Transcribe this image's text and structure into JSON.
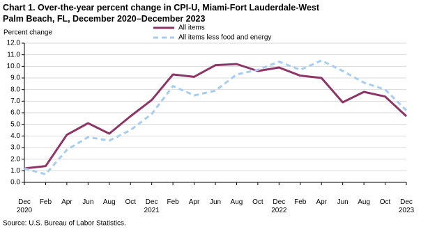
{
  "chart_data": {
    "type": "line",
    "title": "Chart 1. Over-the-year percent change in CPI-U, Miami-Fort Lauderdale-West Palm Beach, FL, December 2020–December 2023",
    "y_label": "Percent change",
    "source": "Source: U.S. Bureau of Labor Statistics.",
    "categories": [
      "Dec 2020",
      "Feb",
      "Apr",
      "Jun",
      "Aug",
      "Oct",
      "Dec 2021",
      "Feb",
      "Apr",
      "Jun",
      "Aug",
      "Oct",
      "Dec 2022",
      "Feb",
      "Apr",
      "Jun",
      "Aug",
      "Oct",
      "Dec 2023"
    ],
    "series": [
      {
        "name": "All items",
        "color": "#8c3566",
        "dashed": false,
        "values": [
          1.2,
          1.4,
          4.1,
          5.1,
          4.2,
          5.7,
          7.1,
          9.3,
          9.1,
          10.1,
          10.2,
          9.6,
          9.9,
          9.2,
          9.0,
          6.9,
          7.8,
          7.4,
          5.7
        ]
      },
      {
        "name": "All items less food and energy",
        "color": "#a6cdf0",
        "dashed": true,
        "values": [
          1.2,
          0.7,
          2.8,
          3.9,
          3.6,
          4.5,
          5.9,
          8.3,
          7.5,
          7.9,
          9.3,
          9.7,
          10.4,
          9.7,
          10.5,
          9.6,
          8.6,
          8.0,
          6.2
        ]
      }
    ],
    "ylim": [
      0,
      12
    ],
    "yticks": [
      {
        "value": 0,
        "label": "0.0"
      },
      {
        "value": 1,
        "label": "1.0"
      },
      {
        "value": 2,
        "label": "2.0"
      },
      {
        "value": 3,
        "label": "3.0"
      },
      {
        "value": 4,
        "label": "4.0"
      },
      {
        "value": 5,
        "label": "5.0"
      },
      {
        "value": 6,
        "label": "6.0"
      },
      {
        "value": 7,
        "label": "7.0"
      },
      {
        "value": 8,
        "label": "8.0"
      },
      {
        "value": 9,
        "label": "9.0"
      },
      {
        "value": 10,
        "label": "10.0"
      },
      {
        "value": 11,
        "label": "11.0"
      },
      {
        "value": 12,
        "label": "12.0"
      }
    ],
    "grid": true
  }
}
